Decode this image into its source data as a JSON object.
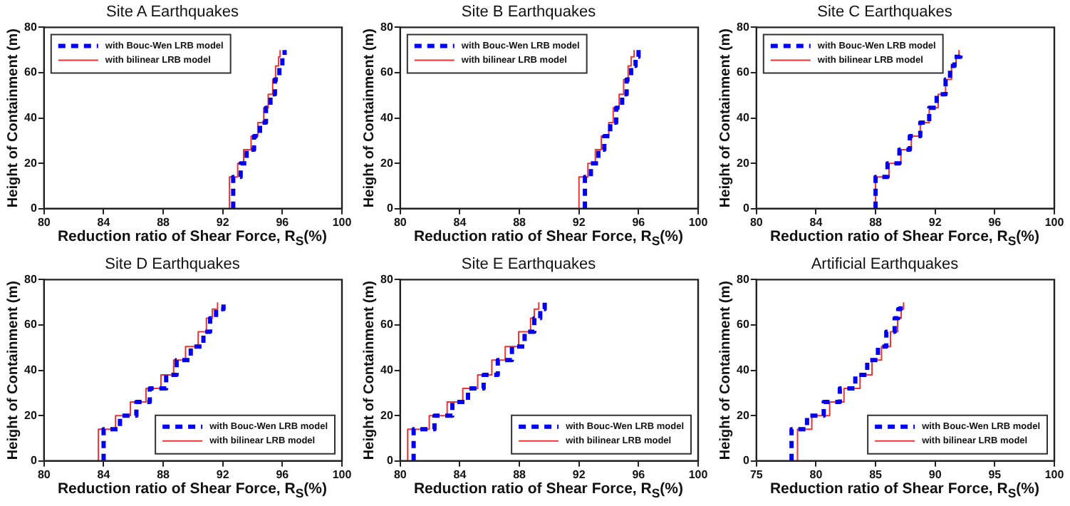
{
  "chart_data": [
    {
      "type": "line",
      "title": "Site A Earthquakes",
      "xlabel": "Reduction ratio of Shear Force, R$_{S}$(%)",
      "ylabel": "Height of Containment (m)",
      "xlim": [
        80,
        100
      ],
      "xticks": [
        80,
        84,
        88,
        92,
        96,
        100
      ],
      "ylim": [
        0,
        80
      ],
      "yticks": [
        0,
        20,
        40,
        60,
        80
      ],
      "legend": "top left",
      "series": [
        {
          "name": "with Bouc-Wen LRB model",
          "color": "#0000ee",
          "line_style": "dashed",
          "x": [
            92.7,
            92.7,
            93.2,
            93.2,
            93.6,
            93.6,
            94.1,
            94.1,
            94.5,
            94.5,
            94.9,
            94.9,
            95.2,
            95.2,
            95.5,
            95.5,
            95.8,
            95.8,
            96.0,
            96.0,
            96.15,
            96.15
          ],
          "values": [
            0,
            14,
            14,
            20,
            20,
            26,
            26,
            32,
            32,
            38,
            38,
            44.5,
            44.5,
            50.5,
            50.5,
            57,
            57,
            63,
            63,
            67,
            67,
            70
          ]
        },
        {
          "name": "with bilinear LRB model",
          "color": "#ee3333",
          "line_style": "solid",
          "x": [
            92.45,
            92.45,
            93.0,
            93.0,
            93.4,
            93.4,
            93.9,
            93.9,
            94.35,
            94.35,
            94.75,
            94.75,
            95.05,
            95.05,
            95.35,
            95.35,
            95.55,
            95.55,
            95.75,
            95.75,
            95.85,
            95.85
          ],
          "values": [
            0,
            14,
            14,
            20,
            20,
            26,
            26,
            32,
            32,
            38,
            38,
            44.5,
            44.5,
            50.5,
            50.5,
            57,
            57,
            63,
            63,
            67,
            67,
            70
          ]
        }
      ]
    },
    {
      "type": "line",
      "title": "Site B Earthquakes",
      "xlabel": "Reduction ratio of Shear Force, R$_{S}$(%)",
      "ylabel": "Height of Containment (m)",
      "xlim": [
        80,
        100
      ],
      "xticks": [
        80,
        84,
        88,
        92,
        96,
        100
      ],
      "ylim": [
        0,
        80
      ],
      "yticks": [
        0,
        20,
        40,
        60,
        80
      ],
      "legend": "top left",
      "series": [
        {
          "name": "with Bouc-Wen LRB model",
          "color": "#0000ee",
          "line_style": "dashed",
          "x": [
            92.4,
            92.4,
            92.8,
            92.8,
            93.3,
            93.3,
            93.7,
            93.7,
            94.1,
            94.1,
            94.5,
            94.5,
            94.9,
            94.9,
            95.2,
            95.2,
            95.5,
            95.5,
            95.8,
            95.8,
            96.0,
            96.0
          ],
          "values": [
            0,
            14,
            14,
            20,
            20,
            26,
            26,
            32,
            32,
            38,
            38,
            44.5,
            44.5,
            50.5,
            50.5,
            57,
            57,
            63,
            63,
            67,
            67,
            70
          ]
        },
        {
          "name": "with bilinear LRB model",
          "color": "#ee3333",
          "line_style": "solid",
          "x": [
            92.0,
            92.0,
            92.6,
            92.6,
            93.1,
            93.1,
            93.5,
            93.5,
            94.0,
            94.0,
            94.3,
            94.3,
            94.7,
            94.7,
            95.0,
            95.0,
            95.3,
            95.3,
            95.5,
            95.5,
            95.7,
            95.7
          ],
          "values": [
            0,
            14,
            14,
            20,
            20,
            26,
            26,
            32,
            32,
            38,
            38,
            44.5,
            44.5,
            50.5,
            50.5,
            57,
            57,
            63,
            63,
            67,
            67,
            70
          ]
        }
      ]
    },
    {
      "type": "line",
      "title": "Site C Earthquakes",
      "xlabel": "Reduction ratio of Shear Force, R$_{S}$(%)",
      "ylabel": "Height of Containment (m)",
      "xlim": [
        80,
        100
      ],
      "xticks": [
        80,
        84,
        88,
        92,
        96,
        100
      ],
      "ylim": [
        0,
        80
      ],
      "yticks": [
        0,
        20,
        40,
        60,
        80
      ],
      "legend": "top left",
      "series": [
        {
          "name": "with Bouc-Wen LRB model",
          "color": "#0000ee",
          "line_style": "dashed",
          "x": [
            88.0,
            88.0,
            88.8,
            88.8,
            89.6,
            89.6,
            90.3,
            90.3,
            91.0,
            91.0,
            91.6,
            91.6,
            92.1,
            92.1,
            92.7,
            92.7,
            93.0,
            93.0,
            93.3,
            93.3,
            93.7,
            93.7
          ],
          "values": [
            0,
            14,
            14,
            20,
            20,
            26,
            26,
            32,
            32,
            38,
            38,
            44.5,
            44.5,
            50.5,
            50.5,
            57,
            57,
            63,
            63,
            67,
            67,
            70
          ]
        },
        {
          "name": "with bilinear LRB model",
          "color": "#ee3333",
          "line_style": "solid",
          "x": [
            88.0,
            88.0,
            88.9,
            88.9,
            89.7,
            89.7,
            90.4,
            90.4,
            91.0,
            91.0,
            91.6,
            91.6,
            92.2,
            92.2,
            92.7,
            92.7,
            93.1,
            93.1,
            93.4,
            93.4,
            93.6,
            93.6
          ],
          "values": [
            0,
            14,
            14,
            20,
            20,
            26,
            26,
            32,
            32,
            38,
            38,
            44.5,
            44.5,
            50.5,
            50.5,
            57,
            57,
            63,
            63,
            67,
            67,
            70
          ]
        }
      ]
    },
    {
      "type": "line",
      "title": "Site D Earthquakes",
      "xlabel": "Reduction ratio of Shear Force, R$_{S}$(%)",
      "ylabel": "Height of Containment (m)",
      "xlim": [
        80,
        100
      ],
      "xticks": [
        80,
        84,
        88,
        92,
        96,
        100
      ],
      "ylim": [
        0,
        80
      ],
      "yticks": [
        0,
        20,
        40,
        60,
        80
      ],
      "legend": "bottom right",
      "series": [
        {
          "name": "with Bouc-Wen LRB model",
          "color": "#0000ee",
          "line_style": "dashed",
          "x": [
            84.0,
            84.0,
            85.1,
            85.1,
            86.2,
            86.2,
            87.1,
            87.1,
            88.2,
            88.2,
            88.9,
            88.9,
            89.85,
            89.85,
            90.7,
            90.7,
            91.15,
            91.15,
            91.55,
            91.55,
            92.05,
            92.05
          ],
          "values": [
            0,
            14,
            14,
            20,
            20,
            26,
            26,
            32,
            32,
            38,
            38,
            44.5,
            44.5,
            50.5,
            50.5,
            57,
            57,
            63,
            63,
            67,
            67,
            70
          ]
        },
        {
          "name": "with bilinear LRB model",
          "color": "#ee3333",
          "line_style": "solid",
          "x": [
            83.65,
            83.65,
            84.8,
            84.8,
            85.8,
            85.8,
            86.85,
            86.85,
            87.85,
            87.85,
            88.7,
            88.7,
            89.5,
            89.5,
            90.35,
            90.35,
            90.9,
            90.9,
            91.3,
            91.3,
            91.65,
            91.65
          ],
          "values": [
            0,
            14,
            14,
            20,
            20,
            26,
            26,
            32,
            32,
            38,
            38,
            44.5,
            44.5,
            50.5,
            50.5,
            57,
            57,
            63,
            63,
            67,
            67,
            70
          ]
        }
      ]
    },
    {
      "type": "line",
      "title": "Site E Earthquakes",
      "xlabel": "Reduction ratio of Shear Force, R$_{S}$(%)",
      "ylabel": "Height of Containment (m)",
      "xlim": [
        80,
        100
      ],
      "xticks": [
        80,
        84,
        88,
        92,
        96,
        100
      ],
      "ylim": [
        0,
        80
      ],
      "yticks": [
        0,
        20,
        40,
        60,
        80
      ],
      "legend": "bottom right",
      "series": [
        {
          "name": "with Bouc-Wen LRB model",
          "color": "#0000ee",
          "line_style": "dashed",
          "x": [
            80.9,
            80.9,
            82.3,
            82.3,
            83.5,
            83.5,
            84.55,
            84.55,
            85.6,
            85.6,
            86.55,
            86.55,
            87.5,
            87.5,
            88.35,
            88.35,
            89.0,
            89.0,
            89.4,
            89.4,
            89.7,
            89.7
          ],
          "values": [
            0,
            14,
            14,
            20,
            20,
            26,
            26,
            32,
            32,
            38,
            38,
            44.5,
            44.5,
            50.5,
            50.5,
            57,
            57,
            63,
            63,
            67,
            67,
            70
          ]
        },
        {
          "name": "with bilinear LRB model",
          "color": "#ee3333",
          "line_style": "solid",
          "x": [
            80.5,
            80.5,
            81.95,
            81.95,
            83.15,
            83.15,
            84.2,
            84.2,
            85.2,
            85.2,
            86.15,
            86.15,
            87.05,
            87.05,
            87.95,
            87.95,
            88.75,
            88.75,
            89.0,
            89.0,
            89.3,
            89.3
          ],
          "values": [
            0,
            14,
            14,
            20,
            20,
            26,
            26,
            32,
            32,
            38,
            38,
            44.5,
            44.5,
            50.5,
            50.5,
            57,
            57,
            63,
            63,
            67,
            67,
            70
          ]
        }
      ]
    },
    {
      "type": "line",
      "title": "Artificial Earthquakes",
      "xlabel": "Reduction ratio of Shear Force, R$_{S}$(%)",
      "ylabel": "Height of Containment (m)",
      "xlim": [
        75,
        100
      ],
      "xticks": [
        75,
        80,
        85,
        90,
        95,
        100
      ],
      "ylim": [
        0,
        80
      ],
      "yticks": [
        0,
        20,
        40,
        60,
        80
      ],
      "legend": "bottom right",
      "series": [
        {
          "name": "with Bouc-Wen LRB model",
          "color": "#0000ee",
          "line_style": "dashed",
          "x": [
            77.95,
            77.95,
            79.25,
            79.25,
            80.65,
            80.65,
            82.0,
            82.0,
            83.3,
            83.3,
            84.3,
            84.3,
            85.2,
            85.2,
            85.9,
            85.9,
            86.6,
            86.6,
            86.9,
            86.9,
            87.1,
            87.1
          ],
          "values": [
            0,
            14,
            14,
            20,
            20,
            26,
            26,
            32,
            32,
            38,
            38,
            44.5,
            44.5,
            50.5,
            50.5,
            57,
            57,
            63,
            63,
            67,
            67,
            70
          ]
        },
        {
          "name": "with bilinear LRB model",
          "color": "#ee3333",
          "line_style": "solid",
          "x": [
            78.45,
            78.45,
            79.65,
            79.65,
            81.15,
            81.15,
            82.35,
            82.35,
            83.7,
            83.7,
            84.7,
            84.7,
            85.5,
            85.5,
            86.25,
            86.25,
            86.85,
            86.85,
            87.15,
            87.15,
            87.35,
            87.35
          ],
          "values": [
            0,
            14,
            14,
            20,
            20,
            26,
            26,
            32,
            32,
            38,
            38,
            44.5,
            44.5,
            50.5,
            50.5,
            57,
            57,
            63,
            63,
            67,
            67,
            70
          ]
        }
      ]
    }
  ]
}
